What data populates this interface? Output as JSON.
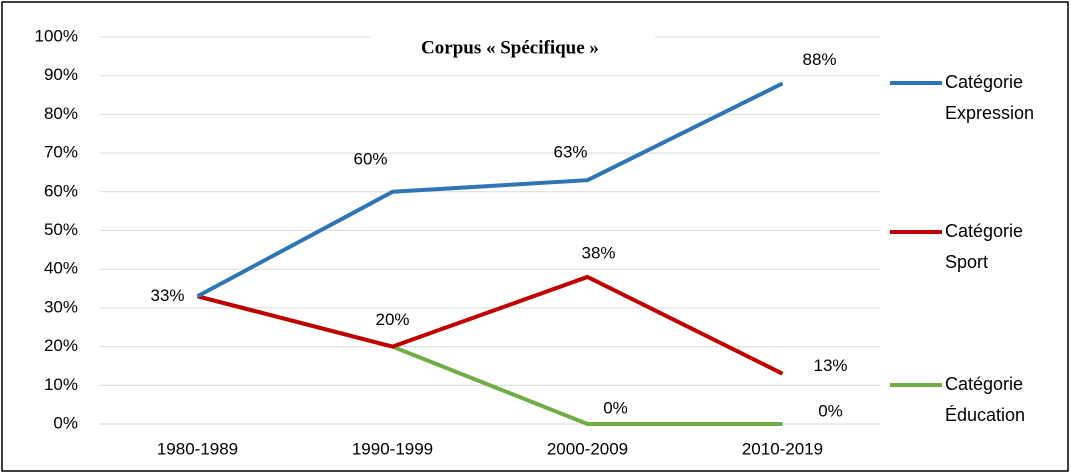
{
  "chart_data": {
    "type": "line",
    "title": "Corpus « Spécifique »",
    "categories": [
      "1980-1989",
      "1990-1999",
      "2000-2009",
      "2010-2019"
    ],
    "series": [
      {
        "name": "Catégorie Expression",
        "color": "#2e75b6",
        "values": [
          33,
          60,
          63,
          88
        ],
        "value_labels": [
          "33%",
          "60%",
          "63%",
          "88%"
        ]
      },
      {
        "name": "Catégorie Sport",
        "color": "#c00000",
        "values": [
          33,
          20,
          38,
          13
        ],
        "value_labels": [
          null,
          "20%",
          "38%",
          "13%"
        ]
      },
      {
        "name": "Catégorie Éducation",
        "color": "#70ad47",
        "values": [
          33,
          20,
          0,
          0
        ],
        "value_labels": [
          null,
          null,
          "0%",
          "0%"
        ]
      }
    ],
    "ylim": [
      0,
      100
    ],
    "yticks": [
      {
        "value": 0,
        "label": "0%"
      },
      {
        "value": 10,
        "label": "10%"
      },
      {
        "value": 20,
        "label": "20%"
      },
      {
        "value": 30,
        "label": "30%"
      },
      {
        "value": 40,
        "label": "40%"
      },
      {
        "value": 50,
        "label": "50%"
      },
      {
        "value": 60,
        "label": "60%"
      },
      {
        "value": 70,
        "label": "70%"
      },
      {
        "value": 80,
        "label": "80%"
      },
      {
        "value": 90,
        "label": "90%"
      },
      {
        "value": 100,
        "label": "100%"
      }
    ],
    "grid": true,
    "legend": "right"
  }
}
